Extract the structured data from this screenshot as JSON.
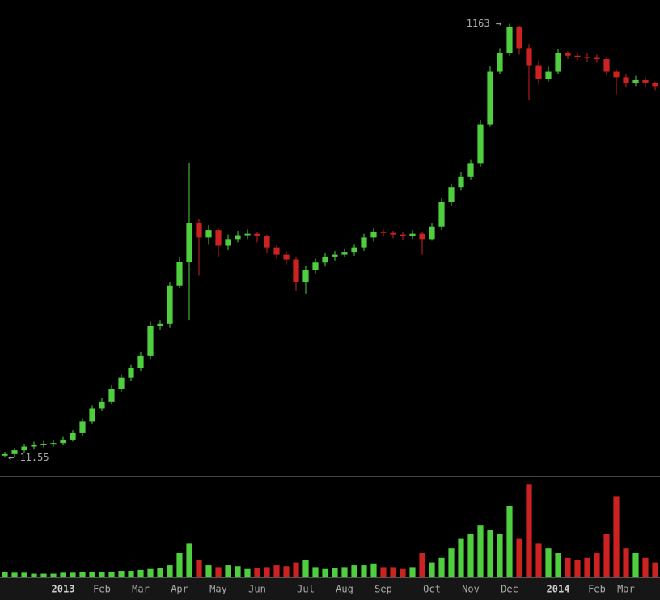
{
  "chart_data": {
    "type": "candlestick",
    "log_scale": true,
    "up_color": "#4fcf3f",
    "down_color": "#cc2222",
    "ylim": [
      9.5,
      1500
    ],
    "volume_lim": [
      0,
      100
    ],
    "categories": [
      null,
      null,
      null,
      null,
      null,
      null,
      "2013",
      null,
      null,
      null,
      "Feb",
      null,
      null,
      null,
      "Mar",
      null,
      null,
      null,
      "Apr",
      null,
      null,
      null,
      "May",
      null,
      null,
      null,
      "Jun",
      null,
      null,
      null,
      null,
      "Jul",
      null,
      null,
      null,
      "Aug",
      null,
      null,
      null,
      "Sep",
      null,
      null,
      null,
      null,
      "Oct",
      null,
      null,
      null,
      "Nov",
      null,
      null,
      null,
      "Dec",
      null,
      null,
      null,
      null,
      "2014",
      null,
      null,
      null,
      "Feb",
      null,
      null,
      "Mar",
      null,
      null,
      null
    ],
    "open": [
      11.8,
      12,
      12.5,
      13,
      13.3,
      13.4,
      13.5,
      14,
      15,
      17,
      19.5,
      21,
      24,
      27,
      30,
      34,
      47,
      48,
      72,
      93,
      140,
      120,
      130,
      110,
      118,
      123,
      125,
      122,
      108,
      100,
      95,
      75,
      85,
      92,
      98,
      100,
      103,
      108,
      120,
      128,
      126,
      124,
      122,
      125,
      118,
      135,
      175,
      205,
      230,
      265,
      400,
      700,
      850,
      1130,
      900,
      750,
      650,
      700,
      850,
      830,
      820,
      810,
      800,
      700,
      660,
      620,
      640,
      620
    ],
    "high": [
      12.3,
      12.8,
      13.4,
      13.7,
      13.8,
      13.9,
      14.4,
      15.5,
      17.6,
      20.2,
      21.8,
      24.9,
      28,
      31,
      35.5,
      49,
      50,
      75,
      97,
      266,
      147,
      137,
      133,
      124,
      129,
      131,
      128,
      124,
      111,
      104,
      98,
      89,
      96,
      102,
      104,
      107,
      112,
      125,
      133,
      131,
      129,
      127,
      130,
      127,
      140,
      182,
      213,
      240,
      276,
      420,
      740,
      900,
      1163,
      1140,
      940,
      790,
      740,
      890,
      870,
      860,
      850,
      840,
      820,
      720,
      680,
      670,
      660,
      630
    ],
    "low": [
      11.55,
      11.6,
      12.1,
      12.6,
      12.9,
      13,
      13.2,
      13.7,
      14.6,
      16.5,
      19,
      20.4,
      23.3,
      26.2,
      29.1,
      33,
      45,
      46,
      70,
      50,
      80,
      112,
      98,
      105,
      114,
      118,
      114,
      102,
      96,
      90,
      68,
      66,
      82,
      88,
      94,
      97,
      99,
      104,
      115,
      121,
      119,
      117,
      118,
      100,
      116,
      130,
      168,
      198,
      222,
      255,
      390,
      680,
      830,
      840,
      520,
      610,
      630,
      680,
      800,
      790,
      780,
      770,
      670,
      550,
      590,
      600,
      595,
      575
    ],
    "close": [
      12,
      12.5,
      13,
      13.3,
      13.4,
      13.5,
      14,
      15,
      17,
      19.5,
      21,
      24,
      27,
      30,
      34,
      47,
      48,
      72,
      93,
      140,
      120,
      130,
      110,
      118,
      123,
      125,
      122,
      108,
      100,
      95,
      75,
      85,
      92,
      98,
      100,
      103,
      108,
      120,
      128,
      126,
      124,
      122,
      125,
      118,
      135,
      175,
      205,
      230,
      265,
      400,
      700,
      850,
      1130,
      900,
      750,
      650,
      700,
      850,
      830,
      820,
      810,
      800,
      700,
      660,
      620,
      640,
      620,
      600
    ],
    "volume": [
      5,
      4,
      4,
      3,
      3,
      3,
      4,
      4,
      5,
      5,
      5,
      5,
      6,
      6,
      7,
      8,
      9,
      12,
      25,
      35,
      18,
      12,
      10,
      12,
      11,
      8,
      9,
      10,
      12,
      11,
      15,
      18,
      10,
      8,
      9,
      10,
      12,
      12,
      14,
      10,
      10,
      8,
      10,
      25,
      15,
      20,
      30,
      40,
      45,
      55,
      50,
      45,
      75,
      40,
      98,
      35,
      30,
      25,
      20,
      18,
      20,
      25,
      45,
      85,
      30,
      25,
      20,
      15
    ],
    "annotations": [
      {
        "text": "1163 →",
        "value": 1163
      },
      {
        "text": "← 11.55",
        "value": 11.55
      }
    ]
  }
}
